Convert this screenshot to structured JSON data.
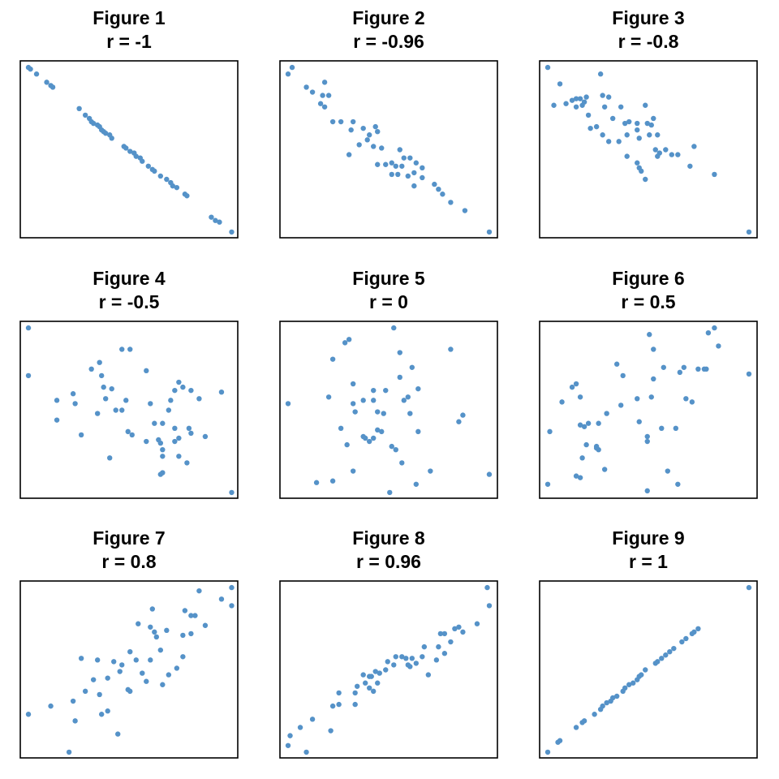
{
  "chart_data": [
    {
      "type": "scatter",
      "title": "Figure 1",
      "subtitle": "r = -1",
      "color": "#5592c8",
      "xlim": [
        -4,
        103
      ],
      "ylim": [
        -3.5,
        104
      ],
      "x": [
        0,
        1,
        4,
        9,
        11,
        12,
        25,
        28,
        30,
        31,
        32,
        34,
        35,
        36,
        37,
        38,
        40,
        41,
        47,
        48,
        50,
        52,
        53,
        55,
        56,
        59,
        61,
        62,
        65,
        68,
        70,
        71,
        73,
        77,
        78,
        90,
        92,
        94,
        100
      ],
      "y": [
        100,
        99,
        96,
        91,
        89,
        88,
        75,
        71,
        69,
        67,
        66,
        65,
        64,
        62,
        61,
        60,
        59,
        57,
        52,
        51,
        49,
        48,
        46,
        45,
        43,
        40,
        38,
        37,
        34,
        32,
        30,
        28,
        27,
        23,
        22,
        9,
        7,
        6,
        0
      ]
    },
    {
      "type": "scatter",
      "title": "Figure 2",
      "subtitle": "r = -0.96",
      "color": "#5592c8",
      "xlim": [
        -4,
        103
      ],
      "ylim": [
        -3.5,
        104
      ],
      "x": [
        0,
        2,
        9,
        12,
        16,
        18,
        17,
        20,
        18,
        22,
        26,
        32,
        31,
        37,
        43,
        44,
        40,
        39,
        35,
        30,
        42,
        46,
        55,
        44,
        48,
        51,
        53,
        51,
        54,
        57,
        60,
        63,
        66,
        56,
        62,
        59,
        66,
        62,
        72,
        74,
        76,
        80,
        87,
        99
      ],
      "y": [
        96,
        100,
        88,
        85,
        78,
        91,
        83,
        83,
        76,
        67,
        67,
        67,
        62,
        63,
        64,
        61,
        59,
        56,
        53,
        47,
        52,
        51,
        50,
        41,
        41,
        42,
        40,
        35,
        35,
        45,
        45,
        42,
        39,
        40,
        36,
        34,
        33,
        28,
        29,
        26,
        23,
        18,
        13,
        0
      ]
    },
    {
      "type": "scatter",
      "title": "Figure 3",
      "subtitle": "r = -0.8",
      "color": "#5592c8",
      "xlim": [
        -4,
        103
      ],
      "ylim": [
        -3.5,
        104
      ],
      "x": [
        0,
        6,
        3,
        9,
        12,
        14,
        16,
        17,
        18,
        19,
        26,
        27,
        30,
        28,
        14,
        20,
        21,
        24,
        27,
        30,
        32,
        36,
        38,
        40,
        39,
        44,
        44,
        48,
        49,
        52,
        51,
        45,
        39,
        44,
        45,
        46,
        48,
        53,
        55,
        54,
        58,
        61,
        64,
        70,
        72,
        82,
        99,
        35,
        54,
        50
      ],
      "y": [
        100,
        90,
        77,
        78,
        80,
        81,
        81,
        77,
        79,
        82,
        96,
        83,
        82,
        76,
        76,
        71,
        63,
        64,
        59,
        55,
        69,
        76,
        66,
        67,
        59,
        66,
        62,
        77,
        66,
        69,
        65,
        57,
        46,
        42,
        39,
        37,
        32,
        50,
        48,
        46,
        50,
        47,
        47,
        40,
        52,
        35,
        0,
        55,
        59,
        59
      ]
    },
    {
      "type": "scatter",
      "title": "Figure 4",
      "subtitle": "r = -0.5",
      "color": "#5592c8",
      "xlim": [
        -4,
        103
      ],
      "ylim": [
        -3.5,
        104
      ],
      "x": [
        0,
        0,
        14,
        14,
        22,
        23,
        26,
        31,
        35,
        36,
        34,
        37,
        38,
        41,
        46,
        50,
        43,
        46,
        48,
        49,
        51,
        40,
        58,
        60,
        62,
        66,
        70,
        72,
        74,
        76,
        80,
        84,
        95,
        58,
        64,
        65,
        66,
        66,
        65,
        66,
        72,
        74,
        79,
        80,
        78,
        74,
        87,
        100,
        69,
        72
      ],
      "y": [
        100,
        71,
        56,
        44,
        60,
        54,
        35,
        75,
        79,
        71,
        48,
        64,
        57,
        63,
        87,
        87,
        50,
        50,
        56,
        37,
        35,
        21,
        74,
        54,
        42,
        42,
        56,
        62,
        67,
        64,
        62,
        57,
        61,
        31,
        32,
        30,
        26,
        22,
        11,
        12,
        39,
        33,
        39,
        36,
        18,
        22,
        34,
        0,
        50,
        31
      ]
    },
    {
      "type": "scatter",
      "title": "Figure 5",
      "subtitle": "r = 0",
      "color": "#5592c8",
      "xlim": [
        -4,
        103
      ],
      "ylim": [
        -3.5,
        104
      ],
      "x": [
        0,
        14,
        22,
        20,
        28,
        30,
        22,
        52,
        55,
        32,
        32,
        33,
        26,
        29,
        32,
        38,
        37,
        42,
        42,
        44,
        48,
        47,
        46,
        42,
        40,
        37,
        51,
        53,
        56,
        50,
        57,
        59,
        64,
        61,
        60,
        64,
        63,
        70,
        80,
        86,
        84,
        99,
        55,
        44
      ],
      "y": [
        54,
        6,
        7,
        58,
        91,
        93,
        81,
        100,
        85,
        66,
        54,
        49,
        39,
        29,
        13,
        33,
        56,
        62,
        56,
        49,
        62,
        48,
        37,
        33,
        31,
        34,
        28,
        26,
        18,
        0,
        56,
        58,
        63,
        76,
        48,
        37,
        5,
        13,
        87,
        47,
        43,
        11,
        70,
        38
      ]
    },
    {
      "type": "scatter",
      "title": "Figure 6",
      "subtitle": "r = 0.5",
      "color": "#5592c8",
      "xlim": [
        -4,
        103
      ],
      "ylim": [
        -3.5,
        104
      ],
      "x": [
        0,
        1,
        7,
        14,
        16,
        12,
        16,
        18,
        20,
        25,
        29,
        24,
        24,
        25,
        19,
        17,
        16,
        14,
        28,
        34,
        37,
        36,
        44,
        45,
        50,
        52,
        52,
        51,
        57,
        49,
        49,
        49,
        56,
        59,
        64,
        63,
        65,
        67,
        68,
        71,
        74,
        77,
        78,
        79,
        82,
        84,
        99
      ],
      "y": [
        5,
        37,
        55,
        66,
        58,
        64,
        41,
        40,
        42,
        42,
        48,
        28,
        27,
        26,
        29,
        21,
        9,
        10,
        14,
        78,
        71,
        53,
        57,
        43,
        96,
        87,
        69,
        58,
        76,
        34,
        31,
        1,
        39,
        13,
        5,
        39,
        73,
        76,
        57,
        55,
        75,
        75,
        75,
        97,
        100,
        89,
        72
      ]
    },
    {
      "type": "scatter",
      "title": "Figure 7",
      "subtitle": "r = 0.8",
      "color": "#5592c8",
      "xlim": [
        -4,
        103
      ],
      "ylim": [
        -3.5,
        104
      ],
      "x": [
        0,
        11,
        20,
        22,
        23,
        28,
        26,
        34,
        32,
        35,
        36,
        39,
        39,
        42,
        44,
        45,
        46,
        49,
        50,
        53,
        54,
        56,
        58,
        60,
        60,
        63,
        65,
        68,
        69,
        66,
        62,
        76,
        76,
        77,
        80,
        82,
        80,
        84,
        87,
        95,
        100,
        100,
        73,
        50,
        61
      ],
      "y": [
        23,
        28,
        0,
        31,
        19,
        37,
        57,
        56,
        44,
        35,
        23,
        25,
        45,
        55,
        11,
        49,
        53,
        38,
        37,
        56,
        78,
        48,
        43,
        76,
        56,
        70,
        62,
        74,
        47,
        41,
        73,
        58,
        71,
        86,
        83,
        83,
        72,
        98,
        77,
        93,
        100,
        89,
        51,
        61,
        87
      ]
    },
    {
      "type": "scatter",
      "title": "Figure 8",
      "subtitle": "r = 0.96",
      "color": "#5592c8",
      "xlim": [
        -4,
        103
      ],
      "ylim": [
        -3.5,
        104
      ],
      "x": [
        0,
        1,
        6,
        9,
        12,
        21,
        22,
        25,
        25,
        33,
        33,
        34,
        37,
        38,
        40,
        40,
        42,
        43,
        44,
        45,
        48,
        49,
        52,
        53,
        56,
        58,
        59,
        61,
        63,
        66,
        67,
        69,
        73,
        74,
        75,
        77,
        77,
        80,
        82,
        84,
        86,
        93,
        98,
        99,
        60,
        41
      ],
      "y": [
        4,
        10,
        15,
        0,
        20,
        13,
        28,
        36,
        29,
        29,
        36,
        40,
        47,
        42,
        46,
        39,
        37,
        49,
        42,
        48,
        50,
        55,
        53,
        58,
        58,
        57,
        53,
        57,
        54,
        58,
        64,
        47,
        56,
        64,
        72,
        72,
        60,
        67,
        75,
        76,
        73,
        78,
        100,
        89,
        52,
        46
      ]
    },
    {
      "type": "scatter",
      "title": "Figure 9",
      "subtitle": "r = 1",
      "color": "#5592c8",
      "xlim": [
        -4,
        103
      ],
      "ylim": [
        -3.5,
        104
      ],
      "x": [
        0,
        5,
        6,
        14,
        17,
        18,
        23,
        26,
        27,
        29,
        31,
        32,
        34,
        37,
        38,
        40,
        42,
        44,
        45,
        46,
        48,
        53,
        54,
        56,
        58,
        60,
        62,
        66,
        68,
        71,
        72,
        74,
        99
      ],
      "y": [
        0,
        6,
        7,
        15,
        18,
        19,
        23,
        26,
        28,
        30,
        31,
        33,
        34,
        37,
        39,
        41,
        42,
        44,
        46,
        47,
        50,
        54,
        55,
        57,
        59,
        61,
        63,
        67,
        69,
        72,
        73,
        75,
        100
      ]
    }
  ]
}
